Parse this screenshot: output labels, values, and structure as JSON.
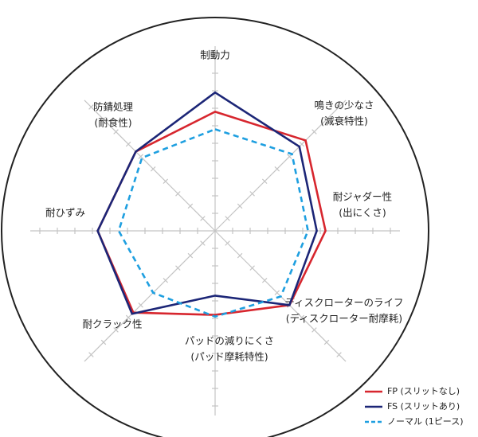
{
  "chart_data": {
    "type": "radar",
    "categories": [
      [
        "制動力"
      ],
      [
        "鳴きの少なさ",
        "(減衰特性)"
      ],
      [
        "耐ジャダー性",
        "(出にくさ)"
      ],
      [
        "ディスクローターのライフ",
        "(ディスクローター耐摩耗)"
      ],
      [
        "パッドの減りにくさ",
        "(パッド摩耗特性)"
      ],
      [
        "耐クラック性"
      ],
      [
        "耐ひずみ"
      ],
      [
        "防錆処理",
        "(耐食性)"
      ]
    ],
    "rlim": [
      0,
      10
    ],
    "rticks": [
      1,
      2,
      3,
      4,
      5,
      6,
      7,
      8,
      9,
      10
    ],
    "legend": "lower-right",
    "series": [
      {
        "name": "FP (スリットなし)",
        "color": "#d7262e",
        "dash": false,
        "values": [
          6.8,
          7.3,
          6.3,
          6.0,
          4.8,
          6.6,
          6.7,
          6.4
        ]
      },
      {
        "name": "FS (スリットあり)",
        "color": "#1c2677",
        "dash": false,
        "values": [
          7.9,
          6.8,
          5.8,
          6.0,
          3.7,
          6.7,
          6.7,
          6.4
        ]
      },
      {
        "name": "ノーマル (1ピース)",
        "color": "#1e9fe0",
        "dash": true,
        "values": [
          5.8,
          6.2,
          5.3,
          5.3,
          4.9,
          5.0,
          5.5,
          5.9
        ]
      }
    ]
  }
}
